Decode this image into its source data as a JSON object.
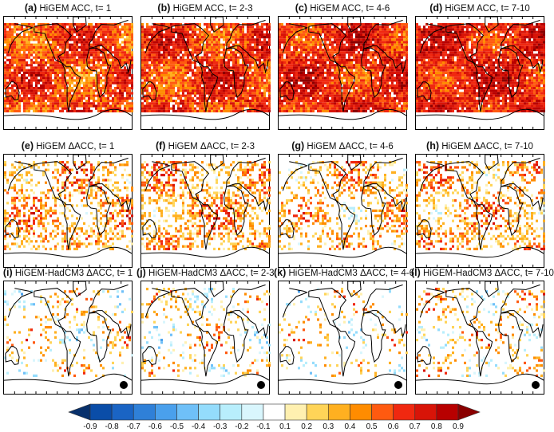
{
  "figure": {
    "panels": [
      {
        "label": "(a)",
        "title": "HiGEM ACC, t= 1",
        "mean": 0.55,
        "spread": 0.35,
        "fill": 0.9,
        "dot": false
      },
      {
        "label": "(b)",
        "title": "HiGEM ACC, t= 2-3",
        "mean": 0.58,
        "spread": 0.35,
        "fill": 0.92,
        "dot": false
      },
      {
        "label": "(c)",
        "title": "HiGEM ACC, t= 4-6",
        "mean": 0.62,
        "spread": 0.35,
        "fill": 0.93,
        "dot": false
      },
      {
        "label": "(d)",
        "title": "HiGEM ACC, t= 7-10",
        "mean": 0.64,
        "spread": 0.33,
        "fill": 0.93,
        "dot": false
      },
      {
        "label": "(e)",
        "title": "HiGEM ΔACC, t= 1",
        "mean": 0.3,
        "spread": 0.5,
        "fill": 0.45,
        "dot": false
      },
      {
        "label": "(f)",
        "title": "HiGEM ΔACC, t= 2-3",
        "mean": 0.3,
        "spread": 0.5,
        "fill": 0.5,
        "dot": false
      },
      {
        "label": "(g)",
        "title": "HiGEM ΔACC, t= 4-6",
        "mean": 0.25,
        "spread": 0.5,
        "fill": 0.4,
        "dot": false
      },
      {
        "label": "(h)",
        "title": "HiGEM ΔACC, t= 7-10",
        "mean": 0.3,
        "spread": 0.5,
        "fill": 0.42,
        "dot": false
      },
      {
        "label": "(i)",
        "title": "HiGEM-HadCM3 ΔACC, t= 1",
        "mean": 0.1,
        "spread": 0.6,
        "fill": 0.22,
        "dot": true
      },
      {
        "label": "(j)",
        "title": "HiGEM-HadCM3 ΔACC, t= 2-3",
        "mean": 0.1,
        "spread": 0.6,
        "fill": 0.22,
        "dot": true
      },
      {
        "label": "(k)",
        "title": "HiGEM-HadCM3 ΔACC, t= 4-6",
        "mean": 0.1,
        "spread": 0.6,
        "fill": 0.15,
        "dot": true
      },
      {
        "label": "(l)",
        "title": "HiGEM-HadCM3 ΔACC, t= 7-10",
        "mean": 0.15,
        "spread": 0.6,
        "fill": 0.22,
        "dot": true
      }
    ]
  },
  "colorbar": {
    "labels": [
      "-0.9",
      "-0.8",
      "-0.7",
      "-0.6",
      "-0.5",
      "-0.4",
      "-0.3",
      "-0.2",
      "-0.1",
      "0.1",
      "0.2",
      "0.3",
      "0.4",
      "0.5",
      "0.6",
      "0.7",
      "0.8",
      "0.9"
    ],
    "colors": [
      "#08306b",
      "#0a4da8",
      "#1a64c4",
      "#2f80d8",
      "#4aa0ec",
      "#6fc0f8",
      "#94dcfc",
      "#b8eefc",
      "#d9f6fd",
      "#ffffff",
      "#fff0b0",
      "#ffd458",
      "#ffb020",
      "#ff8c00",
      "#ff5a10",
      "#f02810",
      "#d81408",
      "#b80000",
      "#8a0000"
    ]
  }
}
